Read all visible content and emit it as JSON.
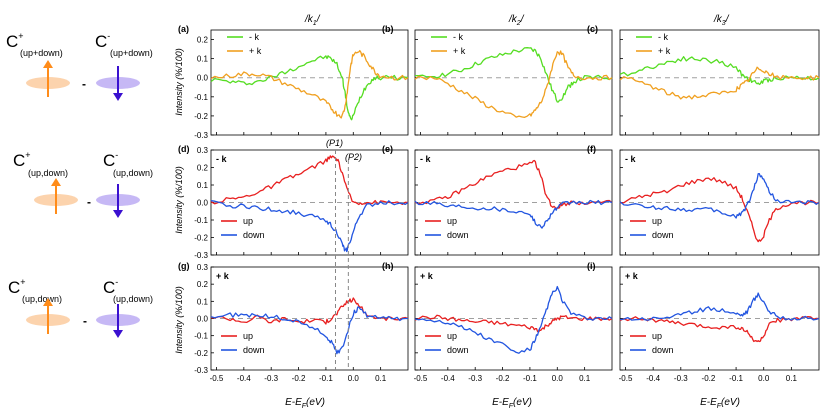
{
  "figure": {
    "row_labels": [
      {
        "main": "C",
        "sup_plus": "+",
        "sub_plus": "(up+down)",
        "sup_minus": "-",
        "sub_minus": "(up+down)",
        "dash": "-"
      },
      {
        "main": "C",
        "sup_plus": "+",
        "sub_plus": "(up,down)",
        "sup_minus": "-",
        "sub_minus": "(up,down)",
        "dash": "-"
      },
      {
        "main": "C",
        "sup_plus": "+",
        "sub_plus": "(up,down)",
        "sup_minus": "-",
        "sub_minus": "(up,down)",
        "dash": "-"
      }
    ],
    "col_titles": [
      "/k",
      "/k",
      "/k"
    ],
    "col_title_subs": [
      "1",
      "2",
      "3"
    ],
    "col_title_tail": "/",
    "ylabel": "Intensity (%/100)",
    "xlabel": "E-E",
    "xlabel_sub": "F",
    "xlabel_tail": "(eV)",
    "xticks": [
      "-0.5",
      "-0.4",
      "-0.3",
      "-0.2",
      "-0.1",
      "0.0",
      "0.1"
    ],
    "yticks_row1": [
      "0.2",
      "0.1",
      "0.0",
      "-0.1",
      "-0.2",
      "-0.3"
    ],
    "yticks_row23": [
      "0.3",
      "0.2",
      "0.1",
      "0.0",
      "-0.1",
      "-0.2",
      "-0.3"
    ],
    "vline_labels": [
      "(P1)",
      "(P2)"
    ],
    "colors": {
      "minus_k": "#55dd22",
      "plus_k": "#f0a020",
      "up": "#e82020",
      "down": "#2255e0",
      "zero": "#a0a0a0",
      "arrow_orange": "#ff8c1a",
      "arrow_blue": "#3a10d0",
      "disc_orange": "#fcd3ad",
      "disc_blue": "#c6b8f5"
    }
  },
  "chart_data": [
    {
      "type": "line",
      "id": "a",
      "panel_label": "(a)",
      "inset": "",
      "legend": [
        "- k",
        "+ k"
      ],
      "xlim": [
        -0.52,
        0.2
      ],
      "ylim": [
        -0.3,
        0.25
      ],
      "series": [
        {
          "name": "- k",
          "color": "#55dd22",
          "x": [
            -0.52,
            -0.45,
            -0.4,
            -0.35,
            -0.3,
            -0.25,
            -0.2,
            -0.15,
            -0.1,
            -0.08,
            -0.06,
            -0.04,
            -0.03,
            -0.02,
            -0.01,
            0.0,
            0.02,
            0.04,
            0.06,
            0.08,
            0.1,
            0.15,
            0.2
          ],
          "y": [
            -0.01,
            -0.02,
            -0.03,
            -0.02,
            0.0,
            0.03,
            0.06,
            0.09,
            0.11,
            0.1,
            0.07,
            0.0,
            -0.08,
            -0.17,
            -0.22,
            -0.2,
            -0.12,
            -0.06,
            -0.02,
            0.0,
            0.0,
            0.0,
            0.0
          ]
        },
        {
          "name": "+ k",
          "color": "#f0a020",
          "x": [
            -0.52,
            -0.45,
            -0.4,
            -0.35,
            -0.3,
            -0.25,
            -0.2,
            -0.15,
            -0.1,
            -0.08,
            -0.06,
            -0.04,
            -0.03,
            -0.02,
            -0.01,
            0.0,
            0.02,
            0.04,
            0.06,
            0.08,
            0.1,
            0.15,
            0.2
          ],
          "y": [
            0.0,
            0.01,
            0.02,
            0.02,
            0.0,
            -0.03,
            -0.06,
            -0.09,
            -0.13,
            -0.16,
            -0.19,
            -0.2,
            -0.15,
            -0.05,
            0.06,
            0.12,
            0.14,
            0.11,
            0.07,
            0.03,
            0.01,
            0.0,
            0.0
          ]
        }
      ]
    },
    {
      "type": "line",
      "id": "b",
      "panel_label": "(b)",
      "inset": "",
      "legend": [
        "- k",
        "+ k"
      ],
      "xlim": [
        -0.52,
        0.2
      ],
      "ylim": [
        -0.3,
        0.25
      ],
      "series": [
        {
          "name": "- k",
          "color": "#55dd22",
          "x": [
            -0.52,
            -0.45,
            -0.4,
            -0.35,
            -0.3,
            -0.25,
            -0.2,
            -0.15,
            -0.1,
            -0.08,
            -0.06,
            -0.04,
            -0.02,
            0.0,
            0.02,
            0.04,
            0.06,
            0.1,
            0.15,
            0.2
          ],
          "y": [
            0.0,
            0.01,
            0.02,
            0.04,
            0.07,
            0.1,
            0.12,
            0.14,
            0.15,
            0.14,
            0.1,
            0.02,
            -0.06,
            -0.12,
            -0.1,
            -0.05,
            -0.02,
            0.0,
            0.0,
            0.0
          ]
        },
        {
          "name": "+ k",
          "color": "#f0a020",
          "x": [
            -0.52,
            -0.45,
            -0.4,
            -0.35,
            -0.3,
            -0.25,
            -0.2,
            -0.15,
            -0.1,
            -0.08,
            -0.06,
            -0.04,
            -0.02,
            0.0,
            0.02,
            0.04,
            0.06,
            0.1,
            0.15,
            0.2
          ],
          "y": [
            0.0,
            0.0,
            -0.03,
            -0.07,
            -0.11,
            -0.15,
            -0.18,
            -0.21,
            -0.2,
            -0.17,
            -0.13,
            -0.06,
            0.05,
            0.14,
            0.12,
            0.05,
            0.01,
            0.0,
            0.0,
            0.0
          ]
        }
      ]
    },
    {
      "type": "line",
      "id": "c",
      "panel_label": "(c)",
      "inset": "",
      "legend": [
        "- k",
        "+ k"
      ],
      "xlim": [
        -0.52,
        0.2
      ],
      "ylim": [
        -0.3,
        0.25
      ],
      "series": [
        {
          "name": "- k",
          "color": "#55dd22",
          "x": [
            -0.52,
            -0.45,
            -0.4,
            -0.35,
            -0.3,
            -0.25,
            -0.2,
            -0.15,
            -0.1,
            -0.08,
            -0.06,
            -0.04,
            -0.02,
            0.0,
            0.02,
            0.05,
            0.1,
            0.15,
            0.2
          ],
          "y": [
            0.01,
            0.04,
            0.06,
            0.08,
            0.1,
            0.1,
            0.09,
            0.08,
            0.05,
            0.02,
            0.0,
            -0.02,
            -0.03,
            -0.02,
            -0.01,
            0.0,
            0.0,
            0.0,
            0.0
          ]
        },
        {
          "name": "+ k",
          "color": "#f0a020",
          "x": [
            -0.52,
            -0.45,
            -0.4,
            -0.35,
            -0.3,
            -0.25,
            -0.2,
            -0.15,
            -0.1,
            -0.08,
            -0.06,
            -0.04,
            -0.02,
            0.0,
            0.02,
            0.05,
            0.1,
            0.15,
            0.2
          ],
          "y": [
            0.0,
            -0.02,
            -0.05,
            -0.08,
            -0.1,
            -0.1,
            -0.09,
            -0.08,
            -0.06,
            -0.04,
            -0.02,
            0.02,
            0.05,
            0.04,
            0.02,
            0.0,
            0.0,
            0.0,
            0.0
          ]
        }
      ]
    },
    {
      "type": "line",
      "id": "d",
      "panel_label": "(d)",
      "inset": "- k",
      "legend": [
        "up",
        "down"
      ],
      "xlim": [
        -0.52,
        0.2
      ],
      "ylim": [
        -0.3,
        0.3
      ],
      "series": [
        {
          "name": "up",
          "color": "#e82020",
          "x": [
            -0.52,
            -0.45,
            -0.4,
            -0.35,
            -0.3,
            -0.25,
            -0.2,
            -0.15,
            -0.1,
            -0.08,
            -0.06,
            -0.04,
            -0.02,
            0.0,
            0.02,
            0.05,
            0.1,
            0.15,
            0.2
          ],
          "y": [
            0.0,
            0.02,
            0.03,
            0.06,
            0.09,
            0.13,
            0.16,
            0.2,
            0.24,
            0.26,
            0.25,
            0.17,
            0.06,
            0.0,
            0.0,
            0.0,
            0.0,
            0.0,
            0.0
          ]
        },
        {
          "name": "down",
          "color": "#2255e0",
          "x": [
            -0.52,
            -0.45,
            -0.4,
            -0.35,
            -0.3,
            -0.25,
            -0.2,
            -0.15,
            -0.1,
            -0.08,
            -0.06,
            -0.04,
            -0.03,
            -0.02,
            0.0,
            0.02,
            0.05,
            0.1,
            0.15,
            0.2
          ],
          "y": [
            0.0,
            -0.02,
            -0.02,
            -0.03,
            -0.04,
            -0.05,
            -0.06,
            -0.08,
            -0.1,
            -0.13,
            -0.17,
            -0.24,
            -0.28,
            -0.26,
            -0.17,
            -0.08,
            -0.02,
            0.0,
            0.0,
            0.0
          ]
        }
      ]
    },
    {
      "type": "line",
      "id": "e",
      "panel_label": "(e)",
      "inset": "- k",
      "legend": [
        "up",
        "down"
      ],
      "xlim": [
        -0.52,
        0.2
      ],
      "ylim": [
        -0.3,
        0.3
      ],
      "series": [
        {
          "name": "up",
          "color": "#e82020",
          "x": [
            -0.52,
            -0.45,
            -0.4,
            -0.35,
            -0.3,
            -0.25,
            -0.2,
            -0.15,
            -0.1,
            -0.08,
            -0.06,
            -0.04,
            -0.02,
            0.0,
            0.02,
            0.05,
            0.1,
            0.15,
            0.2
          ],
          "y": [
            0.0,
            0.01,
            0.03,
            0.07,
            0.11,
            0.15,
            0.18,
            0.2,
            0.22,
            0.23,
            0.15,
            0.04,
            -0.02,
            -0.03,
            -0.01,
            0.0,
            0.0,
            0.0,
            0.0
          ]
        },
        {
          "name": "down",
          "color": "#2255e0",
          "x": [
            -0.52,
            -0.45,
            -0.4,
            -0.35,
            -0.3,
            -0.25,
            -0.2,
            -0.15,
            -0.1,
            -0.08,
            -0.06,
            -0.04,
            -0.02,
            0.0,
            0.02,
            0.05,
            0.1,
            0.15,
            0.2
          ],
          "y": [
            0.0,
            0.0,
            -0.02,
            -0.02,
            -0.03,
            -0.03,
            -0.04,
            -0.05,
            -0.06,
            -0.12,
            -0.14,
            -0.11,
            -0.06,
            -0.03,
            -0.01,
            0.0,
            0.0,
            0.0,
            0.0
          ]
        }
      ]
    },
    {
      "type": "line",
      "id": "f",
      "panel_label": "(f)",
      "inset": "- k",
      "legend": [
        "up",
        "down"
      ],
      "xlim": [
        -0.52,
        0.2
      ],
      "ylim": [
        -0.3,
        0.3
      ],
      "series": [
        {
          "name": "up",
          "color": "#e82020",
          "x": [
            -0.52,
            -0.45,
            -0.4,
            -0.35,
            -0.3,
            -0.25,
            -0.2,
            -0.15,
            -0.1,
            -0.08,
            -0.06,
            -0.04,
            -0.02,
            0.0,
            0.02,
            0.05,
            0.1,
            0.15,
            0.2
          ],
          "y": [
            0.0,
            0.03,
            0.05,
            0.06,
            0.1,
            0.12,
            0.14,
            0.12,
            0.08,
            0.03,
            -0.05,
            -0.14,
            -0.23,
            -0.19,
            -0.1,
            -0.03,
            0.0,
            0.0,
            0.0
          ]
        },
        {
          "name": "down",
          "color": "#2255e0",
          "x": [
            -0.52,
            -0.45,
            -0.4,
            -0.35,
            -0.3,
            -0.25,
            -0.2,
            -0.15,
            -0.1,
            -0.08,
            -0.06,
            -0.04,
            -0.02,
            0.0,
            0.02,
            0.05,
            0.1,
            0.15,
            0.2
          ],
          "y": [
            0.0,
            -0.02,
            -0.03,
            -0.03,
            -0.04,
            -0.04,
            -0.04,
            -0.06,
            -0.08,
            -0.06,
            -0.02,
            0.06,
            0.16,
            0.14,
            0.06,
            0.01,
            0.0,
            0.0,
            0.0
          ]
        }
      ]
    },
    {
      "type": "line",
      "id": "g",
      "panel_label": "(g)",
      "inset": "+ k",
      "legend": [
        "up",
        "down"
      ],
      "xlim": [
        -0.52,
        0.2
      ],
      "ylim": [
        -0.3,
        0.3
      ],
      "series": [
        {
          "name": "up",
          "color": "#e82020",
          "x": [
            -0.52,
            -0.45,
            -0.4,
            -0.35,
            -0.3,
            -0.25,
            -0.2,
            -0.15,
            -0.1,
            -0.08,
            -0.06,
            -0.04,
            -0.02,
            0.0,
            0.02,
            0.05,
            0.1,
            0.15,
            0.2
          ],
          "y": [
            0.01,
            0.0,
            -0.02,
            0.01,
            -0.02,
            0.0,
            -0.02,
            -0.01,
            -0.02,
            0.0,
            0.03,
            0.07,
            0.1,
            0.11,
            0.08,
            0.02,
            0.0,
            0.0,
            0.0
          ]
        },
        {
          "name": "down",
          "color": "#2255e0",
          "x": [
            -0.52,
            -0.45,
            -0.4,
            -0.35,
            -0.3,
            -0.25,
            -0.2,
            -0.15,
            -0.1,
            -0.08,
            -0.06,
            -0.04,
            -0.02,
            0.0,
            0.02,
            0.05,
            0.1,
            0.15,
            0.2
          ],
          "y": [
            0.01,
            0.02,
            0.02,
            0.02,
            0.01,
            0.0,
            -0.02,
            -0.05,
            -0.1,
            -0.14,
            -0.2,
            -0.17,
            -0.07,
            0.03,
            0.06,
            0.02,
            0.0,
            0.0,
            0.0
          ]
        }
      ]
    },
    {
      "type": "line",
      "id": "h",
      "panel_label": "(h)",
      "inset": "+ k",
      "legend": [
        "up",
        "down"
      ],
      "xlim": [
        -0.52,
        0.2
      ],
      "ylim": [
        -0.3,
        0.3
      ],
      "series": [
        {
          "name": "up",
          "color": "#e82020",
          "x": [
            -0.52,
            -0.45,
            -0.4,
            -0.35,
            -0.3,
            -0.25,
            -0.2,
            -0.15,
            -0.1,
            -0.08,
            -0.06,
            -0.04,
            -0.02,
            0.0,
            0.02,
            0.05,
            0.1,
            0.15,
            0.2
          ],
          "y": [
            0.0,
            0.01,
            0.0,
            -0.01,
            -0.02,
            -0.02,
            -0.03,
            -0.04,
            -0.05,
            -0.06,
            -0.07,
            -0.04,
            -0.02,
            0.0,
            0.01,
            0.0,
            0.0,
            0.0,
            0.0
          ]
        },
        {
          "name": "down",
          "color": "#2255e0",
          "x": [
            -0.52,
            -0.45,
            -0.4,
            -0.35,
            -0.3,
            -0.25,
            -0.2,
            -0.15,
            -0.1,
            -0.08,
            -0.06,
            -0.04,
            -0.02,
            0.0,
            0.02,
            0.05,
            0.1,
            0.15,
            0.2
          ],
          "y": [
            0.0,
            -0.01,
            -0.02,
            -0.05,
            -0.08,
            -0.12,
            -0.15,
            -0.2,
            -0.18,
            -0.12,
            -0.05,
            0.05,
            0.14,
            0.18,
            0.1,
            0.03,
            0.0,
            0.0,
            0.0
          ]
        }
      ]
    },
    {
      "type": "line",
      "id": "i",
      "panel_label": "(i)",
      "inset": "+ k",
      "legend": [
        "up",
        "down"
      ],
      "xlim": [
        -0.52,
        0.2
      ],
      "ylim": [
        -0.3,
        0.3
      ],
      "series": [
        {
          "name": "up",
          "color": "#e82020",
          "x": [
            -0.52,
            -0.45,
            -0.4,
            -0.35,
            -0.3,
            -0.25,
            -0.2,
            -0.15,
            -0.1,
            -0.08,
            -0.06,
            -0.04,
            -0.02,
            0.0,
            0.02,
            0.05,
            0.1,
            0.15,
            0.2
          ],
          "y": [
            0.0,
            0.0,
            -0.01,
            -0.02,
            -0.03,
            -0.04,
            -0.05,
            -0.05,
            -0.05,
            -0.06,
            -0.08,
            -0.12,
            -0.14,
            -0.1,
            -0.04,
            -0.01,
            0.0,
            0.0,
            0.0
          ]
        },
        {
          "name": "down",
          "color": "#2255e0",
          "x": [
            -0.52,
            -0.45,
            -0.4,
            -0.35,
            -0.3,
            -0.25,
            -0.2,
            -0.15,
            -0.1,
            -0.08,
            -0.06,
            -0.04,
            -0.02,
            0.0,
            0.02,
            0.05,
            0.1,
            0.15,
            0.2
          ],
          "y": [
            0.0,
            0.0,
            0.0,
            0.01,
            0.02,
            0.04,
            0.06,
            0.05,
            0.03,
            0.02,
            0.04,
            0.1,
            0.14,
            0.1,
            0.04,
            0.01,
            0.0,
            0.0,
            0.0
          ]
        }
      ]
    }
  ]
}
